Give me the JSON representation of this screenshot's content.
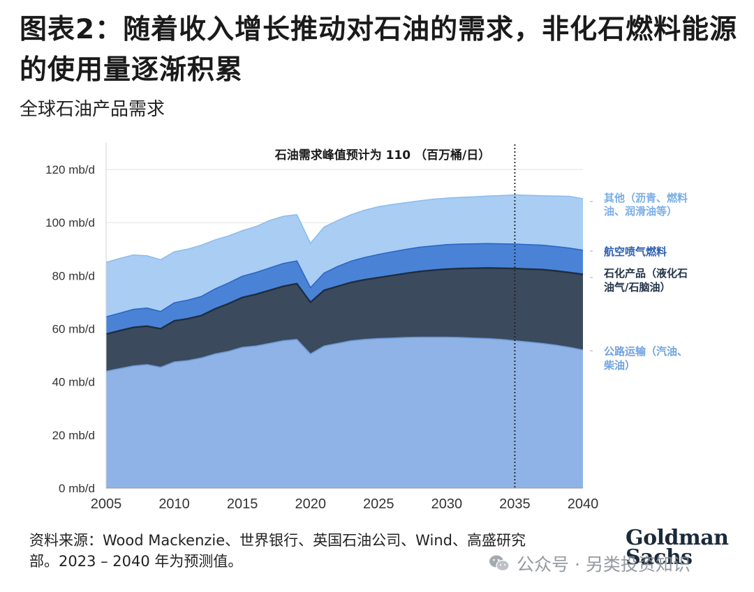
{
  "title": "图表2：随着收入增长推动对石油的需求，非化石燃料能源的使用量逐渐积累",
  "subtitle": "全球石油产品需求",
  "chart_data": {
    "type": "area",
    "stacked": true,
    "title": "图表2：随着收入增长推动对石油的需求，非化石燃料能源的使用量逐渐积累",
    "subtitle": "全球石油产品需求",
    "annotation": "石油需求峰值预计为 110 （百万桶/日）",
    "annotation_x": 2035,
    "x": [
      2005,
      2006,
      2007,
      2008,
      2009,
      2010,
      2011,
      2012,
      2013,
      2014,
      2015,
      2016,
      2017,
      2018,
      2019,
      2020,
      2021,
      2022,
      2023,
      2024,
      2025,
      2026,
      2027,
      2028,
      2029,
      2030,
      2031,
      2032,
      2033,
      2034,
      2035,
      2036,
      2037,
      2038,
      2039,
      2040
    ],
    "xticks": [
      2005,
      2010,
      2015,
      2020,
      2025,
      2030,
      2035,
      2040
    ],
    "ylim": [
      0,
      130
    ],
    "yticks": [
      0,
      20,
      40,
      60,
      80,
      100,
      120
    ],
    "ytick_labels": [
      "0 mb/d",
      "20 mb/d",
      "40 mb/d",
      "60 mb/d",
      "80 mb/d",
      "100 mb/d",
      "120 mb/d"
    ],
    "grid": true,
    "legend": "right-inline",
    "series": [
      {
        "name": "公路运输（汽油、柴油）",
        "color": "#8fb3e6",
        "values": [
          44,
          45,
          46,
          46.5,
          45.5,
          47.5,
          48,
          49,
          50.5,
          51.5,
          53,
          53.5,
          54.5,
          55.5,
          56,
          50.5,
          53.5,
          54.5,
          55.5,
          56,
          56.3,
          56.5,
          56.7,
          56.8,
          56.8,
          56.8,
          56.7,
          56.5,
          56.3,
          56,
          55.5,
          55,
          54.5,
          53.8,
          53,
          52
        ]
      },
      {
        "name": "石化产品（液化石油气/石脑油）",
        "color": "#3c4a5e",
        "values": [
          14,
          14.3,
          14.5,
          14.5,
          14.5,
          15.5,
          15.8,
          16,
          17,
          18,
          18.8,
          19.5,
          20,
          20.5,
          21,
          19.5,
          21,
          21.5,
          22,
          22.5,
          23,
          23.6,
          24.2,
          24.8,
          25.3,
          25.7,
          26,
          26.3,
          26.6,
          26.8,
          27.2,
          27.5,
          27.8,
          28,
          28.2,
          28.5
        ]
      },
      {
        "name": "航空喷气燃料",
        "color": "#4a83d6",
        "values": [
          6.5,
          6.6,
          6.8,
          6.8,
          6.5,
          6.8,
          7,
          7.2,
          7.5,
          7.8,
          8,
          8.2,
          8.4,
          8.6,
          8.6,
          5.5,
          6.5,
          7.5,
          8,
          8.4,
          8.7,
          8.9,
          9,
          9.1,
          9.1,
          9.2,
          9.2,
          9.2,
          9.2,
          9.2,
          9.2,
          9.2,
          9.2,
          9.2,
          9.2,
          9.1
        ]
      },
      {
        "name": "其他（沥青、燃料油、润滑油等）",
        "color": "#a9cdf3",
        "values": [
          20.5,
          20.6,
          20.5,
          19.7,
          19.5,
          19.2,
          19.2,
          19.3,
          18.5,
          17.7,
          17.2,
          17.3,
          17.9,
          17.8,
          17.4,
          16.7,
          17.3,
          17.3,
          17.5,
          17.8,
          18,
          17.8,
          17.6,
          17.5,
          17.6,
          17.5,
          17.6,
          17.7,
          17.9,
          18.2,
          18.5,
          18.6,
          18.6,
          19,
          19.5,
          19.4
        ]
      }
    ],
    "legend_labels": [
      {
        "lines": [
          "其他（沥青、燃料",
          "油、润滑油等）"
        ],
        "color": "#7aaee6"
      },
      {
        "lines": [
          "航空喷气燃料"
        ],
        "color": "#2d5fb0"
      },
      {
        "lines": [
          "石化产品（液化石",
          "油气/石脑油）"
        ],
        "color": "#23344a"
      },
      {
        "lines": [
          "公路运输（汽油、",
          "柴油）"
        ],
        "color": "#6fa2e0"
      }
    ]
  },
  "footer": {
    "source_line1": "资料来源：Wood Mackenzie、世界银行、英国石油公司、Wind、高盛研究",
    "source_line2": "部。2023 – 2040 年为预测值。"
  },
  "logo": {
    "line1": "Goldman",
    "line2": "Sachs"
  },
  "watermark": "公众号 · 另类投资知识"
}
